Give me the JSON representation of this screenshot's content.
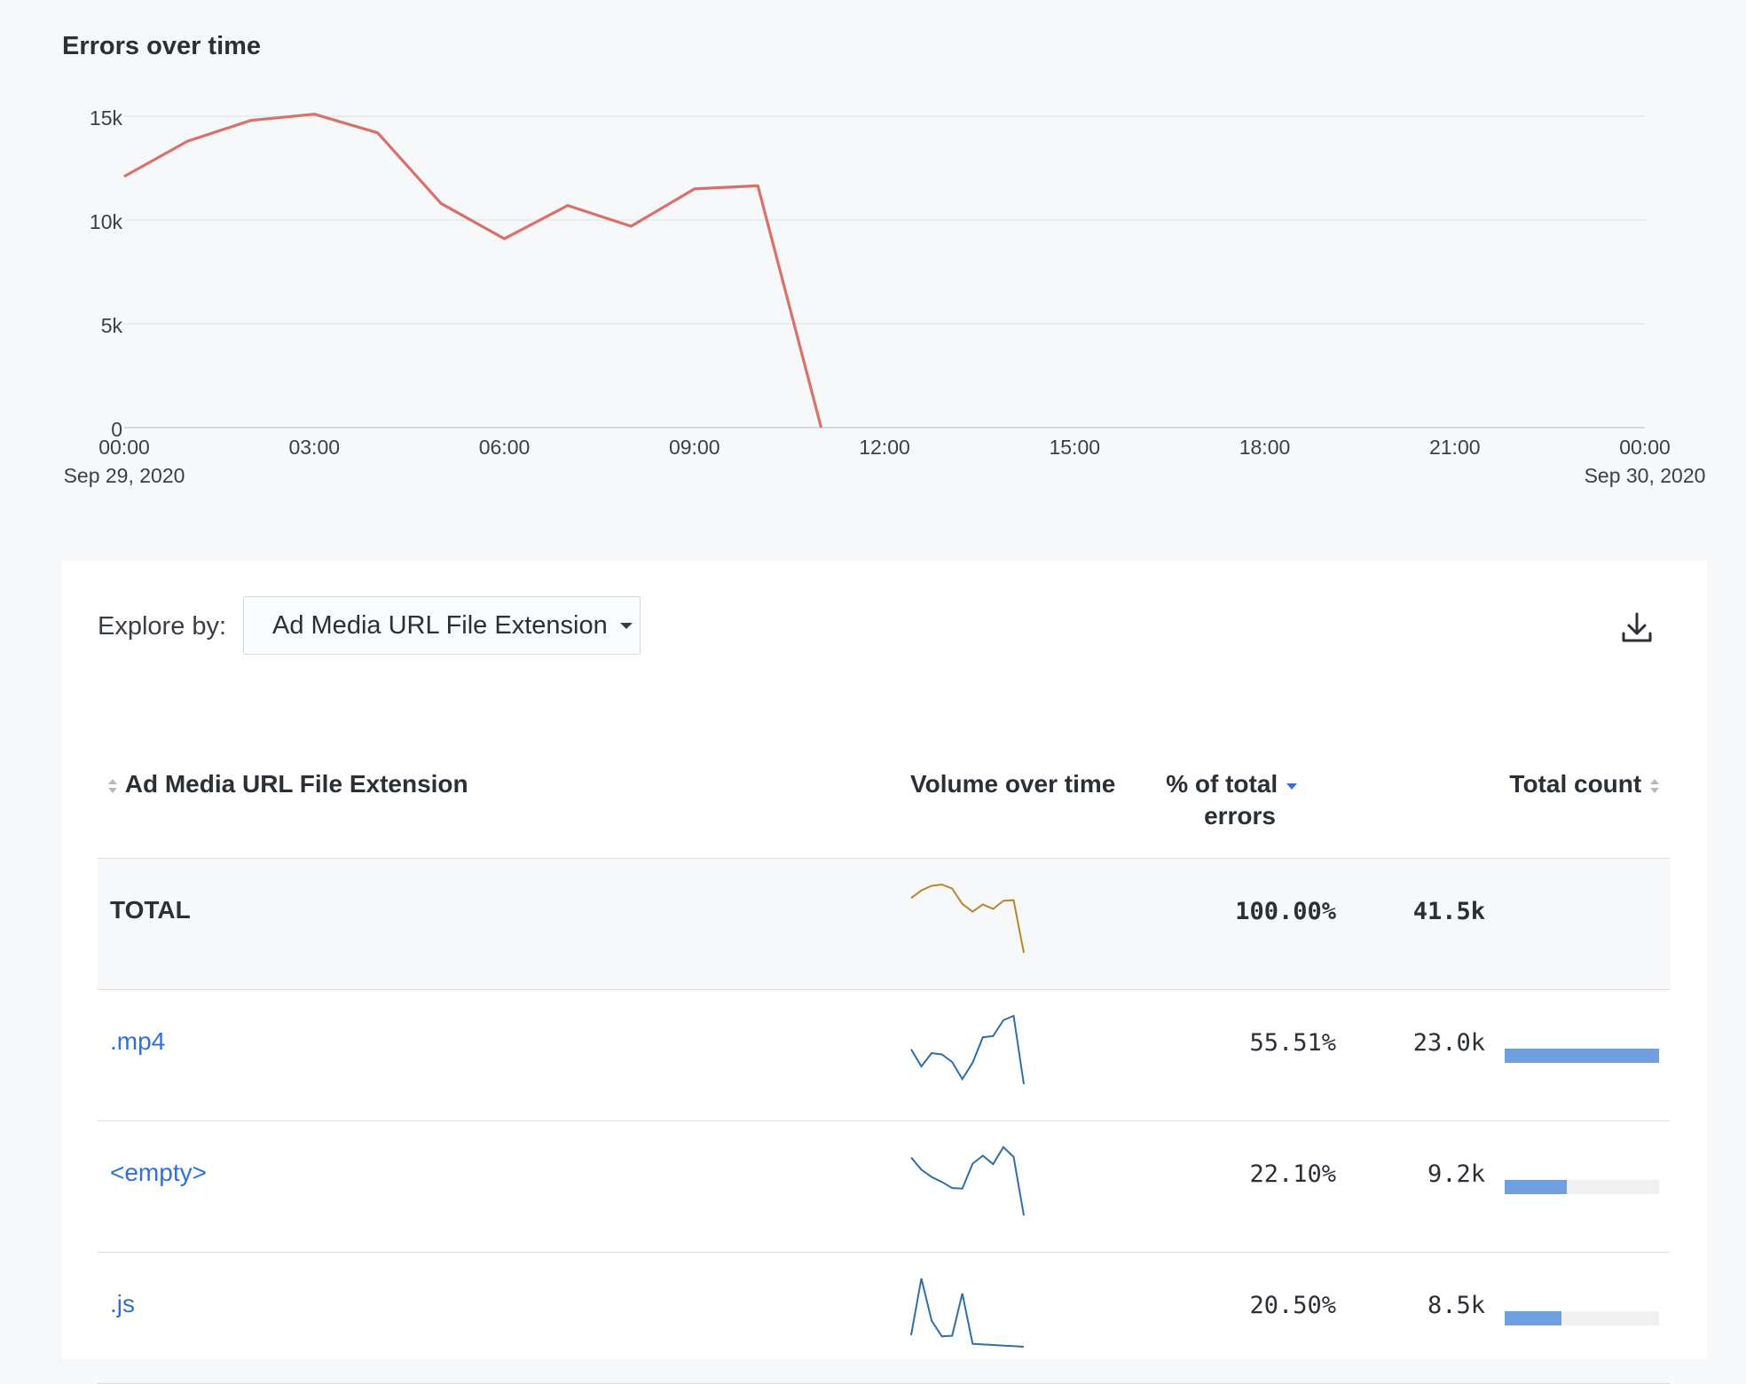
{
  "chart": {
    "title": "Errors over time",
    "chart_data": {
      "type": "line",
      "title": "Errors over time",
      "xlabel": "",
      "ylabel": "",
      "ylim": [
        0,
        15000
      ],
      "y_ticks": [
        "0",
        "5k",
        "10k",
        "15k"
      ],
      "x_ticks": [
        {
          "label": "00:00",
          "sub": "Sep 29, 2020"
        },
        {
          "label": "03:00",
          "sub": ""
        },
        {
          "label": "06:00",
          "sub": ""
        },
        {
          "label": "09:00",
          "sub": ""
        },
        {
          "label": "12:00",
          "sub": ""
        },
        {
          "label": "15:00",
          "sub": ""
        },
        {
          "label": "18:00",
          "sub": ""
        },
        {
          "label": "21:00",
          "sub": ""
        },
        {
          "label": "00:00",
          "sub": "Sep 30, 2020"
        }
      ],
      "x_hours": [
        0,
        1,
        2,
        3,
        4,
        5,
        6,
        7,
        8,
        9,
        10,
        11
      ],
      "values": [
        12100,
        13800,
        14800,
        15100,
        14200,
        10800,
        9100,
        10700,
        9700,
        11500,
        11650,
        0
      ],
      "line_color": "#d9706c",
      "grid": true
    }
  },
  "explore": {
    "label": "Explore by:",
    "selected": "Ad Media URL File Extension"
  },
  "table": {
    "headers": {
      "name": "Ad Media URL File Extension",
      "volume": "Volume over time",
      "pct_line1": "% of total",
      "pct_line2": "errors",
      "count": "Total count"
    },
    "rows": [
      {
        "name": "TOTAL",
        "pct": "100.00%",
        "count": "41.5k",
        "bar_fraction": null,
        "spark_color": "#b8862c",
        "spark": [
          12100,
          13800,
          14800,
          15100,
          14200,
          10800,
          9100,
          10700,
          9700,
          11500,
          11650,
          0
        ]
      },
      {
        "name": ".mp4",
        "pct": "55.51%",
        "count": "23.0k",
        "bar_fraction": 1.0,
        "spark_color": "#2f6ea8",
        "spark": [
          5.5,
          2.8,
          4.9,
          4.7,
          3.5,
          0.8,
          3.4,
          7.4,
          7.6,
          10.1,
          10.8,
          0
        ]
      },
      {
        "name": "<empty>",
        "pct": "22.10%",
        "count": "9.2k",
        "bar_fraction": 0.4,
        "spark_color": "#2f6ea8",
        "spark": [
          9.5,
          7.5,
          6.3,
          5.5,
          4.5,
          4.4,
          8.5,
          9.8,
          8.4,
          11.2,
          9.6,
          0
        ]
      },
      {
        "name": ".js",
        "pct": "20.50%",
        "count": "8.5k",
        "bar_fraction": 0.37,
        "spark_color": "#2f6ea8",
        "spark": [
          2.0,
          11.8,
          4.5,
          1.8,
          1.9,
          9.2,
          0.5,
          0.4,
          0.3,
          0.2,
          0.1,
          0
        ]
      }
    ]
  }
}
